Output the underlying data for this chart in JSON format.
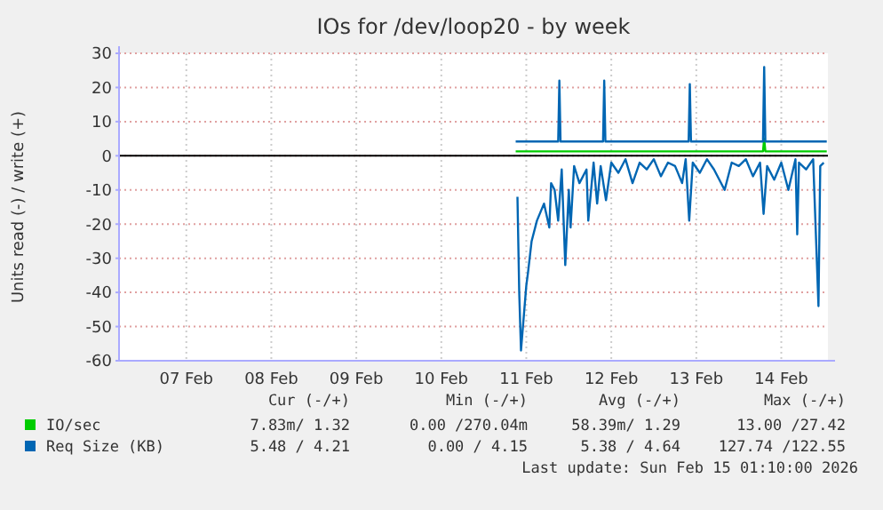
{
  "chart_data": {
    "type": "line",
    "title": "IOs for /dev/loop20 - by week",
    "ylabel": "Units read (-) / write (+)",
    "xlim": [
      "2026-02-06T17:00",
      "2026-02-15T01:10"
    ],
    "xticks": [
      {
        "value": "2026-02-07T12:00",
        "label": "07 Feb"
      },
      {
        "value": "2026-02-08T12:00",
        "label": "08 Feb"
      },
      {
        "value": "2026-02-09T12:00",
        "label": "09 Feb"
      },
      {
        "value": "2026-02-10T12:00",
        "label": "10 Feb"
      },
      {
        "value": "2026-02-11T12:00",
        "label": "11 Feb"
      },
      {
        "value": "2026-02-12T12:00",
        "label": "12 Feb"
      },
      {
        "value": "2026-02-13T12:00",
        "label": "13 Feb"
      },
      {
        "value": "2026-02-14T12:00",
        "label": "14 Feb"
      }
    ],
    "ylim": [
      -60,
      30
    ],
    "yticks": [
      -60,
      -50,
      -40,
      -30,
      -20,
      -10,
      0,
      10,
      20,
      30
    ],
    "grid": true,
    "legend": "bottom",
    "ref_lines": [
      {
        "axis": "y",
        "value": 0,
        "color": "#000000"
      }
    ],
    "series": [
      {
        "name": "IO/sec",
        "color": "#00cc00",
        "x": [
          "2026-02-11T09:00",
          "2026-02-14T06:50",
          "2026-02-14T07:10",
          "2026-02-14T07:30",
          "2026-02-15T00:50"
        ],
        "values": [
          1.3,
          1.3,
          5,
          1.3,
          1.3
        ]
      },
      {
        "name": "Req Size (KB)",
        "color": "#0066b3",
        "x": [
          "2026-02-11T09:00",
          "2026-02-11T21:00",
          "2026-02-11T21:20",
          "2026-02-11T21:40",
          "2026-02-12T09:40",
          "2026-02-12T10:00",
          "2026-02-12T10:20",
          "2026-02-13T09:50",
          "2026-02-13T10:10",
          "2026-02-13T10:30",
          "2026-02-14T06:50",
          "2026-02-14T07:10",
          "2026-02-14T07:30",
          "2026-02-15T00:50"
        ],
        "values": [
          4.2,
          4.2,
          22,
          4.2,
          4.2,
          22,
          4.2,
          4.2,
          21,
          4.2,
          4.2,
          26,
          4.2,
          4.2
        ]
      },
      {
        "color": "#0066b3",
        "x": [
          "2026-02-11T09:30",
          "2026-02-11T10:00",
          "2026-02-11T10:30",
          "2026-02-11T12:00",
          "2026-02-11T12:30",
          "2026-02-11T13:30",
          "2026-02-11T15:00",
          "2026-02-11T17:00",
          "2026-02-11T18:30",
          "2026-02-11T19:00",
          "2026-02-11T20:00",
          "2026-02-11T21:00",
          "2026-02-11T22:00",
          "2026-02-11T23:00",
          "2026-02-12T00:00",
          "2026-02-12T00:30",
          "2026-02-12T01:30",
          "2026-02-12T03:00",
          "2026-02-12T05:00",
          "2026-02-12T05:30",
          "2026-02-12T07:00",
          "2026-02-12T08:00",
          "2026-02-12T09:00",
          "2026-02-12T10:30",
          "2026-02-12T12:00",
          "2026-02-12T14:00",
          "2026-02-12T16:00",
          "2026-02-12T18:00",
          "2026-02-12T20:00",
          "2026-02-12T22:00",
          "2026-02-13T00:00",
          "2026-02-13T02:00",
          "2026-02-13T04:00",
          "2026-02-13T06:00",
          "2026-02-13T08:00",
          "2026-02-13T09:00",
          "2026-02-13T10:00",
          "2026-02-13T11:00",
          "2026-02-13T13:00",
          "2026-02-13T15:00",
          "2026-02-13T17:00",
          "2026-02-13T20:00",
          "2026-02-13T22:00",
          "2026-02-14T00:00",
          "2026-02-14T02:00",
          "2026-02-14T04:00",
          "2026-02-14T06:00",
          "2026-02-14T07:00",
          "2026-02-14T08:00",
          "2026-02-14T10:00",
          "2026-02-14T12:00",
          "2026-02-14T14:00",
          "2026-02-14T16:00",
          "2026-02-14T16:30",
          "2026-02-14T17:00",
          "2026-02-14T19:00",
          "2026-02-14T21:00",
          "2026-02-14T22:30",
          "2026-02-14T23:00",
          "2026-02-15T00:00"
        ],
        "values": [
          -12,
          -40,
          -57,
          -38,
          -34,
          -25,
          -19,
          -14,
          -21,
          -8,
          -10,
          -19,
          -4,
          -32,
          -10,
          -21,
          -3,
          -8,
          -4,
          -19,
          -2,
          -14,
          -3,
          -13,
          -2,
          -5,
          -1,
          -8,
          -2,
          -4,
          -1,
          -6,
          -2,
          -3,
          -8,
          -1,
          -19,
          -2,
          -5,
          -1,
          -4,
          -10,
          -2,
          -3,
          -1,
          -6,
          -2,
          -17,
          -3,
          -7,
          -2,
          -10,
          -1,
          -23,
          -2,
          -4,
          -1,
          -44,
          -3,
          -2
        ]
      }
    ],
    "annotations": [
      "Cur (-/+)",
      "Min (-/+)",
      "Avg (-/+)",
      "Max (-/+)",
      "7.83m/ 1.32",
      "0.00 /270.04m",
      "58.39m/ 1.29",
      "13.00 /27.42",
      "5.48 / 4.21",
      "0.00 / 4.15",
      "5.38 / 4.64",
      "127.74 /122.55",
      "Last update: Sun Feb 15 01:10:00 2026"
    ]
  }
}
